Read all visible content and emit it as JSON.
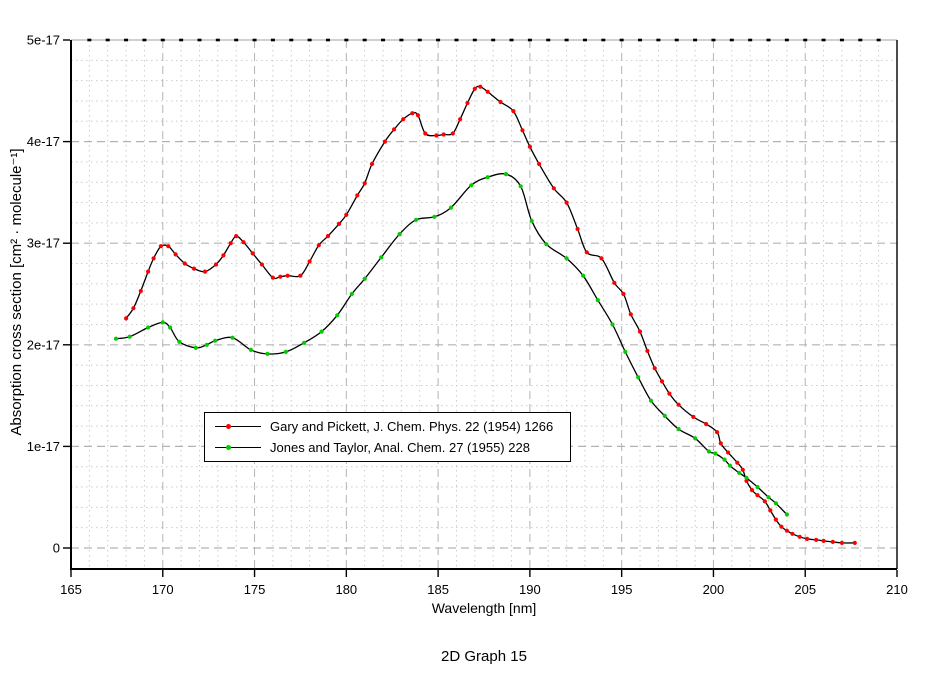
{
  "window_title": "2D Graph 15",
  "chart_data": {
    "type": "line",
    "title": "2D Graph 15",
    "xlabel": "Wavelength [nm]",
    "ylabel": "Absorption cross section [cm² · molecule⁻¹]",
    "xlim": [
      165,
      210
    ],
    "ylim": [
      -2.1e-18,
      5e-17
    ],
    "y_unit_scale": "1e-17",
    "x_ticks": [
      [
        165,
        "165"
      ],
      [
        170,
        "170"
      ],
      [
        175,
        "175"
      ],
      [
        180,
        "180"
      ],
      [
        185,
        "185"
      ],
      [
        190,
        "190"
      ],
      [
        195,
        "195"
      ],
      [
        200,
        "200"
      ],
      [
        205,
        "205"
      ],
      [
        210,
        "210"
      ]
    ],
    "y_ticks": [
      [
        0,
        "0"
      ],
      [
        1,
        "1e-17"
      ],
      [
        2,
        "2e-17"
      ],
      [
        3,
        "3e-17"
      ],
      [
        4,
        "4e-17"
      ],
      [
        5,
        "5e-17"
      ]
    ],
    "x_minor_step": 1,
    "y_minor_step": 0.2,
    "grid": {
      "major_style": "dashed",
      "minor_style": "dotted",
      "major_color": "#b3b3b3",
      "minor_color": "#cccccc"
    },
    "axis_color": "#000000",
    "line_color": "#000000",
    "legend_position": "inside-center-left",
    "series": [
      {
        "name": "Gary and Pickett, J. Chem. Phys. 22 (1954) 1266",
        "marker": "dot",
        "color": "#ff0000",
        "points": [
          [
            168.0,
            2.26
          ],
          [
            168.4,
            2.36
          ],
          [
            168.8,
            2.53
          ],
          [
            169.2,
            2.72
          ],
          [
            169.5,
            2.85
          ],
          [
            169.9,
            2.97
          ],
          [
            170.3,
            2.97
          ],
          [
            170.7,
            2.89
          ],
          [
            171.2,
            2.8
          ],
          [
            171.7,
            2.75
          ],
          [
            172.3,
            2.72
          ],
          [
            172.9,
            2.79
          ],
          [
            173.3,
            2.88
          ],
          [
            173.7,
            3.0
          ],
          [
            174.0,
            3.07
          ],
          [
            174.4,
            3.01
          ],
          [
            174.9,
            2.9
          ],
          [
            175.4,
            2.79
          ],
          [
            176.0,
            2.66
          ],
          [
            176.4,
            2.67
          ],
          [
            176.8,
            2.68
          ],
          [
            177.5,
            2.68
          ],
          [
            178.0,
            2.82
          ],
          [
            178.5,
            2.98
          ],
          [
            179.0,
            3.07
          ],
          [
            179.6,
            3.19
          ],
          [
            180.0,
            3.28
          ],
          [
            180.6,
            3.47
          ],
          [
            181.0,
            3.59
          ],
          [
            181.4,
            3.78
          ],
          [
            182.1,
            4.0
          ],
          [
            182.6,
            4.12
          ],
          [
            183.1,
            4.22
          ],
          [
            183.6,
            4.28
          ],
          [
            183.9,
            4.26
          ],
          [
            184.3,
            4.08
          ],
          [
            184.9,
            4.06
          ],
          [
            185.3,
            4.07
          ],
          [
            185.8,
            4.08
          ],
          [
            186.2,
            4.22
          ],
          [
            186.6,
            4.38
          ],
          [
            187.0,
            4.52
          ],
          [
            187.3,
            4.54
          ],
          [
            187.7,
            4.49
          ],
          [
            188.4,
            4.39
          ],
          [
            189.1,
            4.3
          ],
          [
            189.6,
            4.11
          ],
          [
            190.0,
            3.95
          ],
          [
            190.5,
            3.78
          ],
          [
            191.3,
            3.54
          ],
          [
            192.0,
            3.4
          ],
          [
            192.6,
            3.14
          ],
          [
            193.1,
            2.91
          ],
          [
            193.9,
            2.85
          ],
          [
            194.6,
            2.61
          ],
          [
            195.1,
            2.5
          ],
          [
            195.5,
            2.3
          ],
          [
            196.0,
            2.13
          ],
          [
            196.4,
            1.94
          ],
          [
            196.8,
            1.77
          ],
          [
            197.2,
            1.64
          ],
          [
            197.6,
            1.52
          ],
          [
            198.1,
            1.41
          ],
          [
            198.9,
            1.29
          ],
          [
            199.6,
            1.22
          ],
          [
            200.2,
            1.14
          ],
          [
            200.4,
            1.03
          ],
          [
            200.8,
            0.94
          ],
          [
            201.3,
            0.84
          ],
          [
            201.6,
            0.77
          ],
          [
            201.8,
            0.66
          ],
          [
            202.1,
            0.57
          ],
          [
            202.4,
            0.52
          ],
          [
            202.8,
            0.46
          ],
          [
            203.1,
            0.37
          ],
          [
            203.4,
            0.28
          ],
          [
            203.7,
            0.21
          ],
          [
            204.0,
            0.17
          ],
          [
            204.3,
            0.14
          ],
          [
            204.7,
            0.11
          ],
          [
            205.1,
            0.09
          ],
          [
            205.6,
            0.08
          ],
          [
            206.0,
            0.07
          ],
          [
            206.5,
            0.06
          ],
          [
            207.0,
            0.05
          ],
          [
            207.7,
            0.05
          ]
        ]
      },
      {
        "name": "Jones and Taylor, Anal. Chem. 27 (1955) 228",
        "marker": "dot",
        "color": "#00cc00",
        "points": [
          [
            167.45,
            2.06
          ],
          [
            168.2,
            2.08
          ],
          [
            169.2,
            2.17
          ],
          [
            170.0,
            2.22
          ],
          [
            170.4,
            2.17
          ],
          [
            170.9,
            2.03
          ],
          [
            171.8,
            1.97
          ],
          [
            172.4,
            2.0
          ],
          [
            172.85,
            2.04
          ],
          [
            173.8,
            2.07
          ],
          [
            174.8,
            1.95
          ],
          [
            175.7,
            1.91
          ],
          [
            176.7,
            1.93
          ],
          [
            177.7,
            2.02
          ],
          [
            178.65,
            2.13
          ],
          [
            179.5,
            2.29
          ],
          [
            180.3,
            2.5
          ],
          [
            181.0,
            2.65
          ],
          [
            181.9,
            2.86
          ],
          [
            182.9,
            3.09
          ],
          [
            183.8,
            3.23
          ],
          [
            184.8,
            3.26
          ],
          [
            185.7,
            3.35
          ],
          [
            186.8,
            3.57
          ],
          [
            187.7,
            3.65
          ],
          [
            188.7,
            3.68
          ],
          [
            189.5,
            3.56
          ],
          [
            190.1,
            3.22
          ],
          [
            190.9,
            2.99
          ],
          [
            192.0,
            2.85
          ],
          [
            192.9,
            2.68
          ],
          [
            193.7,
            2.44
          ],
          [
            194.5,
            2.2
          ],
          [
            195.2,
            1.93
          ],
          [
            195.9,
            1.68
          ],
          [
            196.6,
            1.45
          ],
          [
            197.35,
            1.3
          ],
          [
            198.1,
            1.17
          ],
          [
            199.0,
            1.08
          ],
          [
            199.75,
            0.95
          ],
          [
            200.1,
            0.93
          ],
          [
            200.6,
            0.87
          ],
          [
            200.9,
            0.81
          ],
          [
            201.4,
            0.74
          ],
          [
            201.8,
            0.69
          ],
          [
            202.4,
            0.6
          ],
          [
            203.0,
            0.5
          ],
          [
            203.4,
            0.44
          ],
          [
            204.0,
            0.33
          ]
        ]
      }
    ]
  }
}
